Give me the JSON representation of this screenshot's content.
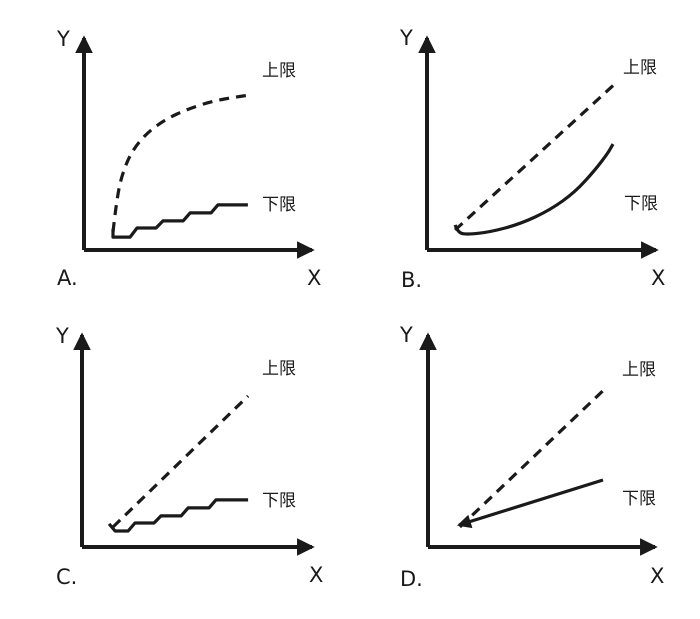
{
  "figure": {
    "description": "Four multiple-choice option plots, each comparing a dashed upper-limit curve and a solid lower-limit curve on unlabeled X-Y axes",
    "background_color": "#ffffff",
    "line_color": "#1a1a1a",
    "text_color": "#1a1a1a"
  },
  "chart_data": [
    {
      "panel": "A",
      "option_label": "A.",
      "type": "line",
      "xlabel": "X",
      "ylabel": "Y",
      "grid": false,
      "axis_ticks": "none",
      "series": [
        {
          "name": "上限",
          "role": "upper-limit",
          "style": "dashed",
          "smooth": true,
          "shape": "steep rise then saturating concave curve",
          "points": [
            [
              0.121,
              0.081
            ],
            [
              0.138,
              0.248
            ],
            [
              0.167,
              0.369
            ],
            [
              0.208,
              0.459
            ],
            [
              0.267,
              0.532
            ],
            [
              0.342,
              0.59
            ],
            [
              0.433,
              0.635
            ],
            [
              0.538,
              0.671
            ],
            [
              0.633,
              0.689
            ],
            [
              0.692,
              0.698
            ]
          ]
        },
        {
          "name": "下限",
          "role": "lower-limit",
          "style": "solid",
          "smooth": false,
          "shape": "slowly rising staircase",
          "points": [
            [
              0.121,
              0.095
            ],
            [
              0.121,
              0.058
            ],
            [
              0.192,
              0.058
            ],
            [
              0.221,
              0.099
            ],
            [
              0.3,
              0.099
            ],
            [
              0.329,
              0.131
            ],
            [
              0.413,
              0.131
            ],
            [
              0.442,
              0.167
            ],
            [
              0.529,
              0.167
            ],
            [
              0.558,
              0.203
            ],
            [
              0.683,
              0.203
            ]
          ]
        }
      ]
    },
    {
      "panel": "B",
      "option_label": "B.",
      "type": "line",
      "xlabel": "X",
      "ylabel": "Y",
      "grid": false,
      "axis_ticks": "none",
      "series": [
        {
          "name": "上限",
          "role": "upper-limit",
          "style": "dashed",
          "smooth": false,
          "shape": "straight rising line",
          "points": [
            [
              0.117,
              0.09
            ],
            [
              0.792,
              0.757
            ]
          ]
        },
        {
          "name": "下限",
          "role": "lower-limit",
          "style": "solid",
          "smooth": true,
          "shape": "convex accelerating curve bending up at right end",
          "points": [
            [
              0.117,
              0.113
            ],
            [
              0.129,
              0.077
            ],
            [
              0.171,
              0.07
            ],
            [
              0.263,
              0.081
            ],
            [
              0.388,
              0.117
            ],
            [
              0.513,
              0.18
            ],
            [
              0.617,
              0.261
            ],
            [
              0.7,
              0.36
            ],
            [
              0.754,
              0.437
            ],
            [
              0.775,
              0.477
            ]
          ]
        }
      ]
    },
    {
      "panel": "C",
      "option_label": "C.",
      "type": "line",
      "xlabel": "X",
      "ylabel": "Y",
      "grid": false,
      "axis_ticks": "none",
      "series": [
        {
          "name": "上限",
          "role": "upper-limit",
          "style": "dashed",
          "smooth": false,
          "shape": "straight rising line",
          "points": [
            [
              0.129,
              0.09
            ],
            [
              0.692,
              0.68
            ]
          ]
        },
        {
          "name": "下限",
          "role": "lower-limit",
          "style": "solid",
          "smooth": false,
          "shape": "slowly rising staircase",
          "points": [
            [
              0.113,
              0.104
            ],
            [
              0.138,
              0.072
            ],
            [
              0.192,
              0.072
            ],
            [
              0.221,
              0.108
            ],
            [
              0.3,
              0.108
            ],
            [
              0.329,
              0.14
            ],
            [
              0.413,
              0.14
            ],
            [
              0.442,
              0.176
            ],
            [
              0.529,
              0.176
            ],
            [
              0.558,
              0.212
            ],
            [
              0.692,
              0.212
            ]
          ]
        }
      ]
    },
    {
      "panel": "D",
      "option_label": "D.",
      "type": "line",
      "xlabel": "X",
      "ylabel": "Y",
      "grid": false,
      "axis_ticks": "none",
      "series": [
        {
          "name": "上限",
          "role": "upper-limit",
          "style": "dashed",
          "smooth": false,
          "shape": "straight rising line",
          "points": [
            [
              0.133,
              0.09
            ],
            [
              0.746,
              0.721
            ]
          ]
        },
        {
          "name": "下限",
          "role": "lower-limit",
          "style": "solid",
          "smooth": false,
          "shape": "straight rising line with lower slope, arrowhead at origin end",
          "start_arrow": true,
          "points": [
            [
              0.129,
              0.099
            ],
            [
              0.729,
              0.302
            ]
          ]
        }
      ]
    }
  ]
}
